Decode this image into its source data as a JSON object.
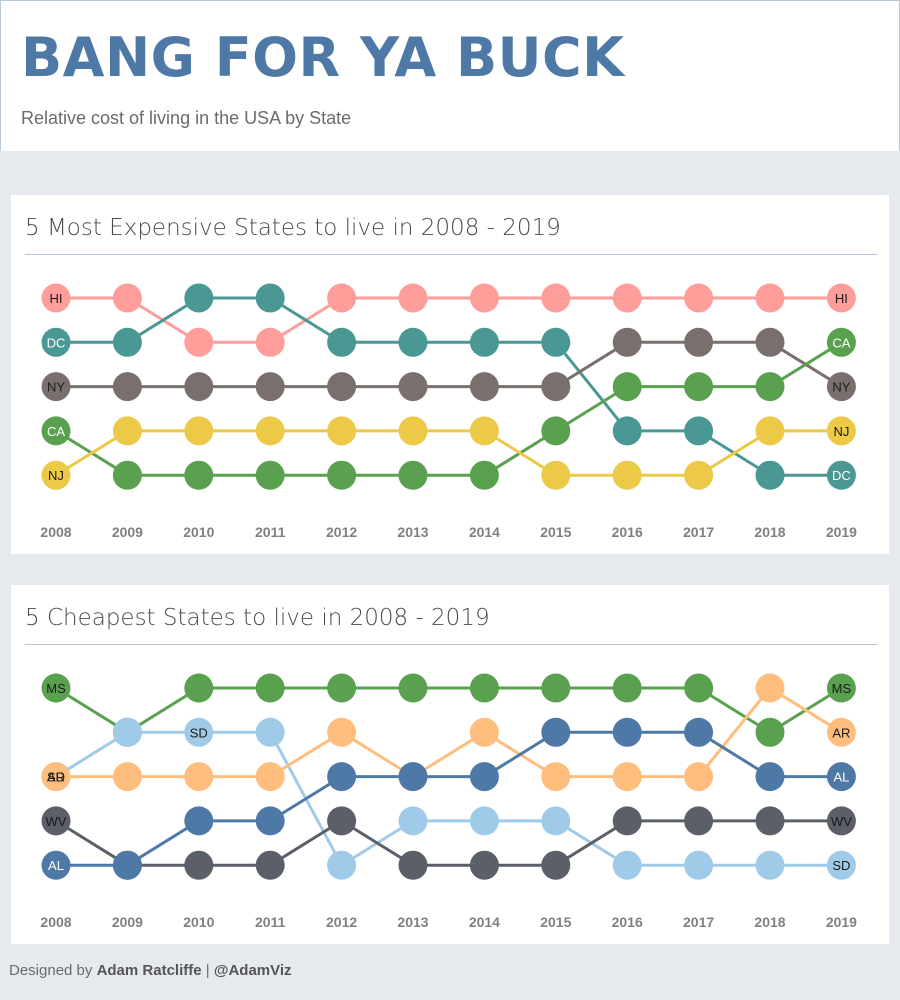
{
  "header": {
    "title": "BANG FOR YA BUCK",
    "subtitle": "Relative cost of living in the USA by State"
  },
  "footer": {
    "prefix": "Designed by",
    "author": "Adam Ratcliffe",
    "separator": "|",
    "handle": "@AdamViz"
  },
  "chart_data": [
    {
      "type": "line",
      "title": "5 Most Expensive States to live in 2008 - 2019",
      "x": [
        "2008",
        "2009",
        "2010",
        "2011",
        "2012",
        "2013",
        "2014",
        "2015",
        "2016",
        "2017",
        "2018",
        "2019"
      ],
      "y_meaning": "rank (1 = top row)",
      "ylim": [
        5,
        1
      ],
      "series": [
        {
          "name": "HI",
          "color": "#ff9d9a",
          "label_color": "#1a1a1a",
          "values": [
            1,
            1,
            2,
            2,
            1,
            1,
            1,
            1,
            1,
            1,
            1,
            1
          ]
        },
        {
          "name": "DC",
          "color": "#499894",
          "label_color": "#ffffff",
          "values": [
            2,
            2,
            1,
            1,
            2,
            2,
            2,
            2,
            4,
            4,
            5,
            5
          ]
        },
        {
          "name": "NY",
          "color": "#79706e",
          "label_color": "#1a1a1a",
          "values": [
            3,
            3,
            3,
            3,
            3,
            3,
            3,
            3,
            2,
            2,
            2,
            3
          ]
        },
        {
          "name": "CA",
          "color": "#59a14f",
          "label_color": "#ffffff",
          "values": [
            4,
            5,
            5,
            5,
            5,
            5,
            5,
            4,
            3,
            3,
            3,
            2
          ]
        },
        {
          "name": "NJ",
          "color": "#edc948",
          "label_color": "#1a1a1a",
          "values": [
            5,
            4,
            4,
            4,
            4,
            4,
            4,
            5,
            5,
            5,
            4,
            4
          ]
        }
      ]
    },
    {
      "type": "line",
      "title": "5 Cheapest States to live in 2008 - 2019",
      "x": [
        "2008",
        "2009",
        "2010",
        "2011",
        "2012",
        "2013",
        "2014",
        "2015",
        "2016",
        "2017",
        "2018",
        "2019"
      ],
      "y_meaning": "rank (1 = top row)",
      "ylim": [
        5,
        1
      ],
      "series": [
        {
          "name": "MS",
          "color": "#59a14f",
          "label_color": "#1a1a1a",
          "values": [
            1,
            2,
            1,
            1,
            1,
            1,
            1,
            1,
            1,
            1,
            2,
            1
          ]
        },
        {
          "name": "SD",
          "color": "#a0cbe8",
          "label_color": "#1a1a1a",
          "label_year": "2010",
          "values": [
            3,
            2,
            2,
            2,
            5,
            4,
            4,
            4,
            5,
            5,
            5,
            5
          ]
        },
        {
          "name": "AR",
          "color": "#ffbe7d",
          "label_color": "#1a1a1a",
          "values": [
            3,
            3,
            3,
            3,
            2,
            3,
            2,
            3,
            3,
            3,
            1,
            2
          ]
        },
        {
          "name": "WV",
          "color": "#5a5f68",
          "label_color": "#1a1a1a",
          "values": [
            4,
            5,
            5,
            5,
            4,
            5,
            5,
            5,
            4,
            4,
            4,
            4
          ]
        },
        {
          "name": "AL",
          "color": "#4e79a7",
          "label_color": "#ffffff",
          "values": [
            5,
            5,
            4,
            4,
            3,
            3,
            3,
            2,
            2,
            2,
            3,
            3
          ]
        }
      ]
    }
  ]
}
